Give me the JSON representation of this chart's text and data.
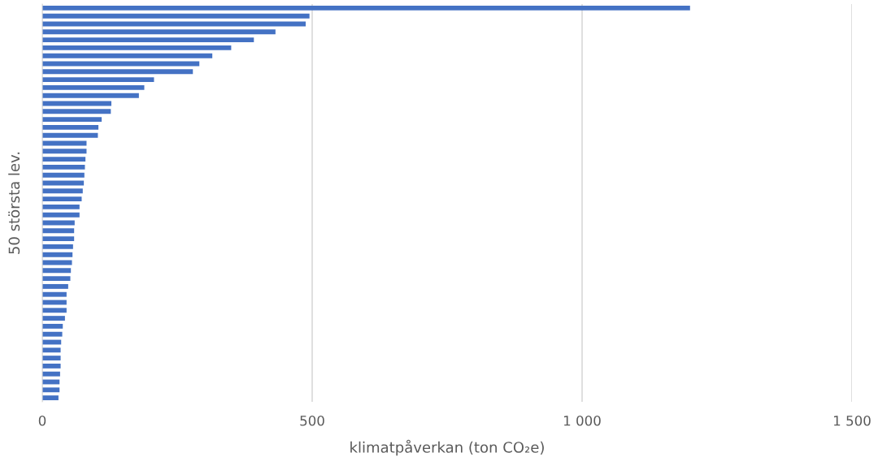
{
  "chart_data": {
    "type": "bar",
    "orientation": "horizontal",
    "xlabel": "klimatpåverkan (ton CO₂e)",
    "ylabel": "50 största lev.",
    "categories": [
      null,
      null,
      null,
      null,
      null,
      null,
      null,
      null,
      null,
      null,
      null,
      null,
      null,
      null,
      null,
      null,
      null,
      null,
      null,
      null,
      null,
      null,
      null,
      null,
      null,
      null,
      null,
      null,
      null,
      null,
      null,
      null,
      null,
      null,
      null,
      null,
      null,
      null,
      null,
      null,
      null,
      null,
      null,
      null,
      null,
      null,
      null,
      null,
      null,
      null
    ],
    "values": [
      1200,
      495,
      488,
      432,
      392,
      350,
      315,
      291,
      279,
      207,
      189,
      179,
      128,
      127,
      110,
      104,
      103,
      82,
      82,
      80,
      79,
      78,
      77,
      75,
      73,
      69,
      69,
      60,
      59,
      59,
      57,
      56,
      55,
      53,
      52,
      48,
      45,
      45,
      45,
      42,
      38,
      37,
      35,
      34,
      34,
      34,
      33,
      32,
      32,
      30
    ],
    "color": "#4472c4",
    "xlim": [
      0,
      1500
    ],
    "xticks": [
      0,
      500,
      {
        "value": 1000,
        "label": "1 000"
      },
      {
        "value": 1500,
        "label": "1 500"
      }
    ],
    "grid": "x",
    "legend": false
  }
}
